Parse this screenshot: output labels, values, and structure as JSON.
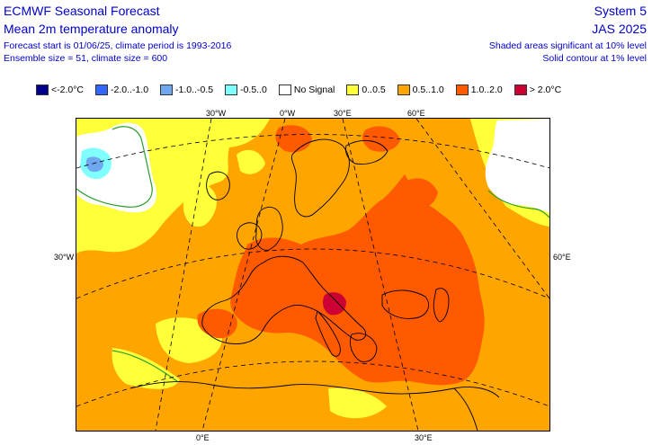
{
  "header": {
    "title": "ECMWF Seasonal Forecast",
    "subtitle": "Mean 2m temperature anomaly",
    "forecast_line": "Forecast start is 01/06/25, climate period is 1993-2016",
    "ensemble_line": "Ensemble size = 51, climate size = 600",
    "system": "System 5",
    "period": "JAS 2025",
    "significance_10": "Shaded areas significant at 10% level",
    "significance_1": "Solid contour at 1% level"
  },
  "legend": [
    {
      "label": "<-2.0°C",
      "color": "#00008c"
    },
    {
      "label": "-2.0..-1.0",
      "color": "#3366ff"
    },
    {
      "label": "-1.0..-0.5",
      "color": "#6fa8ee"
    },
    {
      "label": "-0.5..0",
      "color": "#80ffff"
    },
    {
      "label": "No Signal",
      "color": "#ffffff"
    },
    {
      "label": "0..0.5",
      "color": "#ffff3a"
    },
    {
      "label": "0.5..1.0",
      "color": "#ffa500"
    },
    {
      "label": "1.0..2.0",
      "color": "#ff5a00"
    },
    {
      "label": "> 2.0°C",
      "color": "#cc0033"
    }
  ],
  "map": {
    "coord_labels": {
      "top_30w": "30°W",
      "top_0": "0°W",
      "top_30e": "30°E",
      "top_60e": "60°E",
      "left_30w": "30°W",
      "right_60e": "60°E",
      "bottom_0": "0°E",
      "bottom_30e": "30°E"
    },
    "colors": {
      "weak_warm": "#ffff3a",
      "moderate_warm": "#ffa500",
      "strong_warm": "#ff5a00",
      "extreme_warm": "#cc0033",
      "weak_cold": "#80ffff",
      "moderate_cold": "#6fa8ee",
      "no_signal": "#ffffff",
      "contour_1pct": "#2a9d2a",
      "coastline": "#000000"
    }
  }
}
